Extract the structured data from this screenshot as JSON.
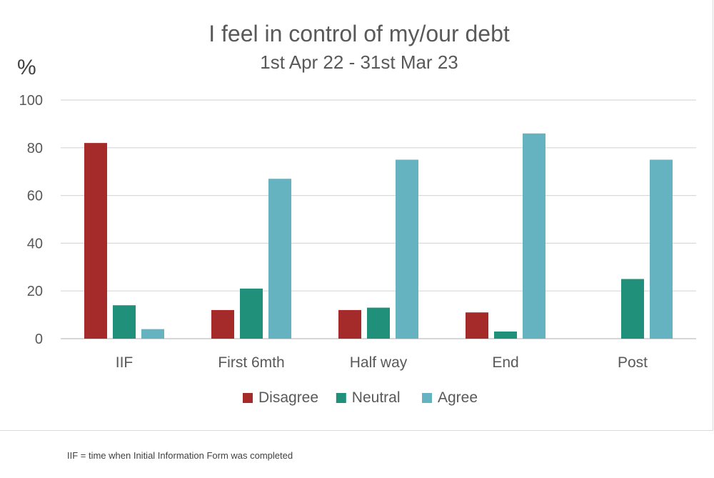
{
  "chart_data": {
    "type": "bar",
    "title": "I feel in control of my/our debt",
    "subtitle": "1st Apr 22 - 31st Mar 23",
    "ylabel": "%",
    "xlabel": "",
    "ylim": [
      0,
      100
    ],
    "yticks": [
      0,
      20,
      40,
      60,
      80,
      100
    ],
    "grid": true,
    "legend_position": "bottom",
    "categories": [
      "IIF",
      "First 6mth",
      "Half way",
      "End",
      "Post"
    ],
    "series": [
      {
        "name": "Disagree",
        "color": "#a52a2a",
        "values": [
          82,
          12,
          12,
          11,
          0
        ]
      },
      {
        "name": "Neutral",
        "color": "#21907a",
        "values": [
          14,
          21,
          13,
          3,
          25
        ]
      },
      {
        "name": "Agree",
        "color": "#65b2c0",
        "values": [
          4,
          67,
          75,
          86,
          75
        ]
      }
    ]
  },
  "footnote": "IIF = time when Initial Information Form was completed"
}
